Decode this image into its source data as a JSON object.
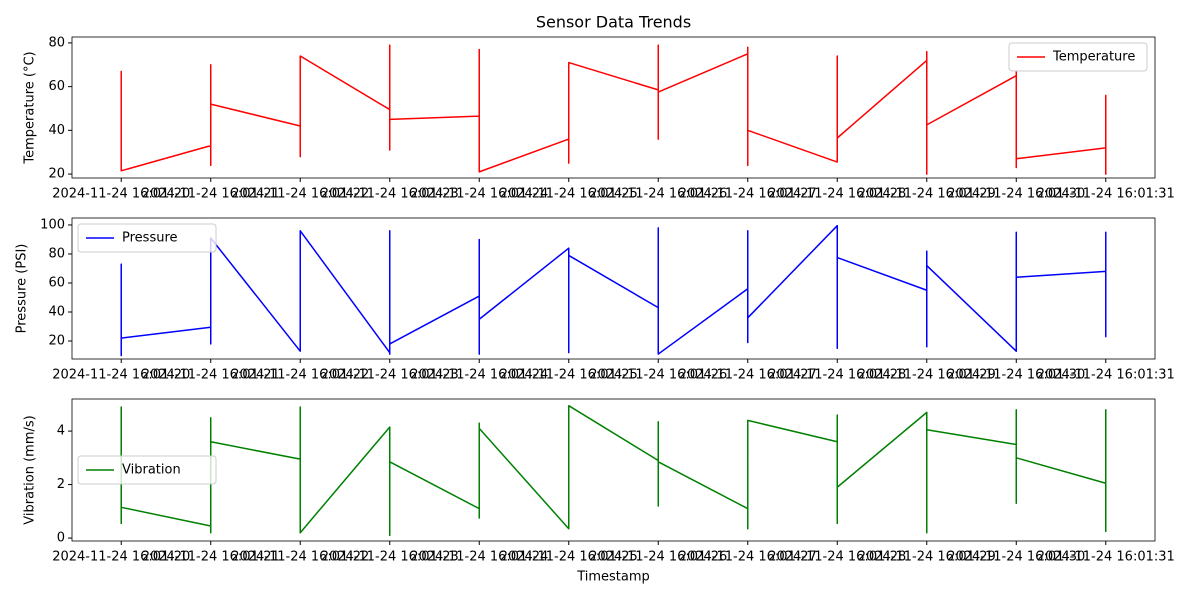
{
  "chart_data": [
    {
      "type": "line",
      "title": "Sensor Data Trends",
      "ylabel": "Temperature (°C)",
      "legend": "upper right",
      "x": [
        "2024-11-24 16:01:20",
        "2024-11-24 16:01:20",
        "2024-11-24 16:01:20",
        "2024-11-24 16:01:20",
        "2024-11-24 16:01:21",
        "2024-11-24 16:01:21",
        "2024-11-24 16:01:21",
        "2024-11-24 16:01:21",
        "2024-11-24 16:01:22",
        "2024-11-24 16:01:22",
        "2024-11-24 16:01:22",
        "2024-11-24 16:01:22",
        "2024-11-24 16:01:23",
        "2024-11-24 16:01:23",
        "2024-11-24 16:01:23",
        "2024-11-24 16:01:23",
        "2024-11-24 16:01:24",
        "2024-11-24 16:01:24",
        "2024-11-24 16:01:24",
        "2024-11-24 16:01:24",
        "2024-11-24 16:01:25",
        "2024-11-24 16:01:25",
        "2024-11-24 16:01:25",
        "2024-11-24 16:01:25",
        "2024-11-24 16:01:26",
        "2024-11-24 16:01:26",
        "2024-11-24 16:01:26",
        "2024-11-24 16:01:26",
        "2024-11-24 16:01:27",
        "2024-11-24 16:01:27",
        "2024-11-24 16:01:27",
        "2024-11-24 16:01:27",
        "2024-11-24 16:01:28",
        "2024-11-24 16:01:28",
        "2024-11-24 16:01:28",
        "2024-11-24 16:01:28",
        "2024-11-24 16:01:29",
        "2024-11-24 16:01:29",
        "2024-11-24 16:01:29",
        "2024-11-24 16:01:29",
        "2024-11-24 16:01:30",
        "2024-11-24 16:01:30",
        "2024-11-24 16:01:30",
        "2024-11-24 16:01:30",
        "2024-11-24 16:01:31",
        "2024-11-24 16:01:31",
        "2024-11-24 16:01:31",
        "2024-11-24 16:01:31"
      ],
      "series": [
        {
          "name": "Temperature",
          "color": "#ff0000",
          "values": [
            60,
            67,
            34,
            21.5,
            33,
            24,
            70,
            52,
            42,
            28,
            74,
            74,
            49.5,
            31,
            79,
            45,
            46.5,
            77,
            21,
            21,
            36,
            25,
            64,
            71,
            58.5,
            36,
            79,
            57.5,
            75,
            24,
            78,
            40,
            25.5,
            74,
            36.5,
            36.5,
            72,
            20,
            76,
            42.5,
            65,
            23,
            67,
            27,
            32,
            20,
            56,
            45
          ]
        }
      ],
      "ylim": [
        18.2,
        82.7
      ],
      "yticks": [
        20,
        40,
        60,
        80
      ],
      "xticks": [
        "2024-11-24 16:01:20",
        "2024-11-24 16:01:21",
        "2024-11-24 16:01:22",
        "2024-11-24 16:01:23",
        "2024-11-24 16:01:24",
        "2024-11-24 16:01:25",
        "2024-11-24 16:01:26",
        "2024-11-24 16:01:27",
        "2024-11-24 16:01:28",
        "2024-11-24 16:01:29",
        "2024-11-24 16:01:30",
        "2024-11-24 16:01:31"
      ]
    },
    {
      "type": "line",
      "ylabel": "Pressure (PSI)",
      "legend": "upper left",
      "x": [
        "2024-11-24 16:01:20",
        "2024-11-24 16:01:20",
        "2024-11-24 16:01:20",
        "2024-11-24 16:01:20",
        "2024-11-24 16:01:21",
        "2024-11-24 16:01:21",
        "2024-11-24 16:01:21",
        "2024-11-24 16:01:21",
        "2024-11-24 16:01:22",
        "2024-11-24 16:01:22",
        "2024-11-24 16:01:22",
        "2024-11-24 16:01:22",
        "2024-11-24 16:01:23",
        "2024-11-24 16:01:23",
        "2024-11-24 16:01:23",
        "2024-11-24 16:01:23",
        "2024-11-24 16:01:24",
        "2024-11-24 16:01:24",
        "2024-11-24 16:01:24",
        "2024-11-24 16:01:24",
        "2024-11-24 16:01:25",
        "2024-11-24 16:01:25",
        "2024-11-24 16:01:25",
        "2024-11-24 16:01:25",
        "2024-11-24 16:01:26",
        "2024-11-24 16:01:26",
        "2024-11-24 16:01:26",
        "2024-11-24 16:01:26",
        "2024-11-24 16:01:27",
        "2024-11-24 16:01:27",
        "2024-11-24 16:01:27",
        "2024-11-24 16:01:27",
        "2024-11-24 16:01:28",
        "2024-11-24 16:01:28",
        "2024-11-24 16:01:28",
        "2024-11-24 16:01:28",
        "2024-11-24 16:01:29",
        "2024-11-24 16:01:29",
        "2024-11-24 16:01:29",
        "2024-11-24 16:01:29",
        "2024-11-24 16:01:30",
        "2024-11-24 16:01:30",
        "2024-11-24 16:01:30",
        "2024-11-24 16:01:30",
        "2024-11-24 16:01:31",
        "2024-11-24 16:01:31",
        "2024-11-24 16:01:31",
        "2024-11-24 16:01:31"
      ],
      "series": [
        {
          "name": "Pressure",
          "color": "#0000ff",
          "values": [
            40,
            10,
            73,
            22,
            29.5,
            18,
            91,
            91,
            13,
            50,
            96,
            96,
            12,
            96,
            11,
            18,
            51,
            11,
            90,
            35,
            84,
            12,
            84,
            79,
            43,
            98,
            11,
            11,
            56,
            19,
            96,
            36,
            99.5,
            15,
            99,
            77.5,
            55,
            16,
            82,
            72,
            13,
            95,
            35,
            64,
            68,
            23,
            95,
            40
          ]
        }
      ],
      "ylim": [
        7.6,
        104.8
      ],
      "yticks": [
        20,
        40,
        60,
        80,
        100
      ],
      "xticks": [
        "2024-11-24 16:01:20",
        "2024-11-24 16:01:21",
        "2024-11-24 16:01:22",
        "2024-11-24 16:01:23",
        "2024-11-24 16:01:24",
        "2024-11-24 16:01:25",
        "2024-11-24 16:01:26",
        "2024-11-24 16:01:27",
        "2024-11-24 16:01:28",
        "2024-11-24 16:01:29",
        "2024-11-24 16:01:30",
        "2024-11-24 16:01:31"
      ]
    },
    {
      "type": "line",
      "ylabel": "Vibration (mm/s)",
      "xlabel": "Timestamp",
      "legend": "center left",
      "x": [
        "2024-11-24 16:01:20",
        "2024-11-24 16:01:20",
        "2024-11-24 16:01:20",
        "2024-11-24 16:01:20",
        "2024-11-24 16:01:21",
        "2024-11-24 16:01:21",
        "2024-11-24 16:01:21",
        "2024-11-24 16:01:21",
        "2024-11-24 16:01:22",
        "2024-11-24 16:01:22",
        "2024-11-24 16:01:22",
        "2024-11-24 16:01:22",
        "2024-11-24 16:01:23",
        "2024-11-24 16:01:23",
        "2024-11-24 16:01:23",
        "2024-11-24 16:01:23",
        "2024-11-24 16:01:24",
        "2024-11-24 16:01:24",
        "2024-11-24 16:01:24",
        "2024-11-24 16:01:24",
        "2024-11-24 16:01:25",
        "2024-11-24 16:01:25",
        "2024-11-24 16:01:25",
        "2024-11-24 16:01:25",
        "2024-11-24 16:01:26",
        "2024-11-24 16:01:26",
        "2024-11-24 16:01:26",
        "2024-11-24 16:01:26",
        "2024-11-24 16:01:27",
        "2024-11-24 16:01:27",
        "2024-11-24 16:01:27",
        "2024-11-24 16:01:27",
        "2024-11-24 16:01:28",
        "2024-11-24 16:01:28",
        "2024-11-24 16:01:28",
        "2024-11-24 16:01:28",
        "2024-11-24 16:01:29",
        "2024-11-24 16:01:29",
        "2024-11-24 16:01:29",
        "2024-11-24 16:01:29",
        "2024-11-24 16:01:30",
        "2024-11-24 16:01:30",
        "2024-11-24 16:01:30",
        "2024-11-24 16:01:30",
        "2024-11-24 16:01:31",
        "2024-11-24 16:01:31",
        "2024-11-24 16:01:31",
        "2024-11-24 16:01:31"
      ],
      "series": [
        {
          "name": "Vibration",
          "color": "#008000",
          "values": [
            3.5,
            4.9,
            0.55,
            1.15,
            0.45,
            4.5,
            0.2,
            3.6,
            2.95,
            4.9,
            0.2,
            0.2,
            4.15,
            0.1,
            3.4,
            2.85,
            1.1,
            0.75,
            4.3,
            4.1,
            0.35,
            1.5,
            4.95,
            4.95,
            2.9,
            1.2,
            4.35,
            2.85,
            1.1,
            0.35,
            4.4,
            4.4,
            3.6,
            0.55,
            4.6,
            1.9,
            4.7,
            0.2,
            4.7,
            4.05,
            3.5,
            1.3,
            4.8,
            3.0,
            2.05,
            0.25,
            4.8,
            4.3
          ]
        }
      ],
      "ylim": [
        -0.11,
        5.2
      ],
      "yticks": [
        0,
        2,
        4
      ],
      "xticks": [
        "2024-11-24 16:01:20",
        "2024-11-24 16:01:21",
        "2024-11-24 16:01:22",
        "2024-11-24 16:01:23",
        "2024-11-24 16:01:24",
        "2024-11-24 16:01:25",
        "2024-11-24 16:01:26",
        "2024-11-24 16:01:27",
        "2024-11-24 16:01:28",
        "2024-11-24 16:01:29",
        "2024-11-24 16:01:30",
        "2024-11-24 16:01:31"
      ]
    }
  ]
}
